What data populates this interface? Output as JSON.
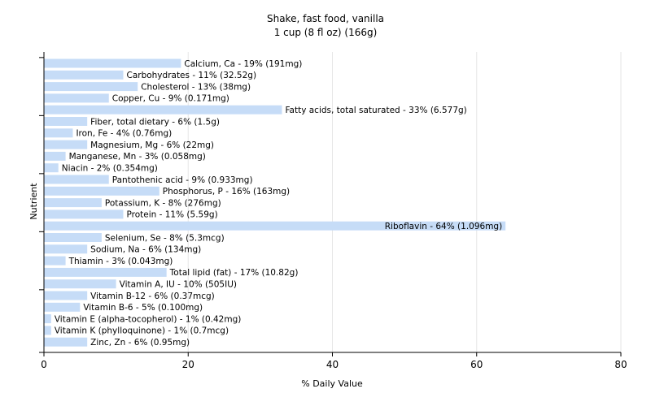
{
  "chart_data": {
    "type": "bar",
    "orientation": "horizontal",
    "title": "Shake, fast food, vanilla",
    "subtitle": "1 cup (8 fl oz) (166g)",
    "xlabel": "% Daily Value",
    "ylabel": "Nutrient",
    "xlim": [
      0,
      80
    ],
    "xticks": [
      0,
      20,
      40,
      60,
      80
    ],
    "grid": "vertical",
    "bar_color": "#c6dcf7",
    "categories": [
      "Calcium, Ca",
      "Carbohydrates",
      "Cholesterol",
      "Copper, Cu",
      "Fatty acids, total saturated",
      "Fiber, total dietary",
      "Iron, Fe",
      "Magnesium, Mg",
      "Manganese, Mn",
      "Niacin",
      "Pantothenic acid",
      "Phosphorus, P",
      "Potassium, K",
      "Protein",
      "Riboflavin",
      "Selenium, Se",
      "Sodium, Na",
      "Thiamin",
      "Total lipid (fat)",
      "Vitamin A, IU",
      "Vitamin B-12",
      "Vitamin B-6",
      "Vitamin E (alpha-tocopherol)",
      "Vitamin K (phylloquinone)",
      "Zinc, Zn"
    ],
    "values": [
      19,
      11,
      13,
      9,
      33,
      6,
      4,
      6,
      3,
      2,
      9,
      16,
      8,
      11,
      64,
      8,
      6,
      3,
      17,
      10,
      6,
      5,
      1,
      1,
      6
    ],
    "labels": [
      "Calcium, Ca - 19% (191mg)",
      "Carbohydrates - 11% (32.52g)",
      "Cholesterol - 13% (38mg)",
      "Copper, Cu - 9% (0.171mg)",
      "Fatty acids, total saturated - 33% (6.577g)",
      "Fiber, total dietary - 6% (1.5g)",
      "Iron, Fe - 4% (0.76mg)",
      "Magnesium, Mg - 6% (22mg)",
      "Manganese, Mn - 3% (0.058mg)",
      "Niacin - 2% (0.354mg)",
      "Pantothenic acid - 9% (0.933mg)",
      "Phosphorus, P - 16% (163mg)",
      "Potassium, K - 8% (276mg)",
      "Protein - 11% (5.59g)",
      "Riboflavin - 64% (1.096mg)",
      "Selenium, Se - 8% (5.3mcg)",
      "Sodium, Na - 6% (134mg)",
      "Thiamin - 3% (0.043mg)",
      "Total lipid (fat) - 17% (10.82g)",
      "Vitamin A, IU - 10% (505IU)",
      "Vitamin B-12 - 6% (0.37mcg)",
      "Vitamin B-6 - 5% (0.100mg)",
      "Vitamin E (alpha-tocopherol) - 1% (0.42mg)",
      "Vitamin K (phylloquinone) - 1% (0.7mcg)",
      "Zinc, Zn - 6% (0.95mg)"
    ]
  }
}
